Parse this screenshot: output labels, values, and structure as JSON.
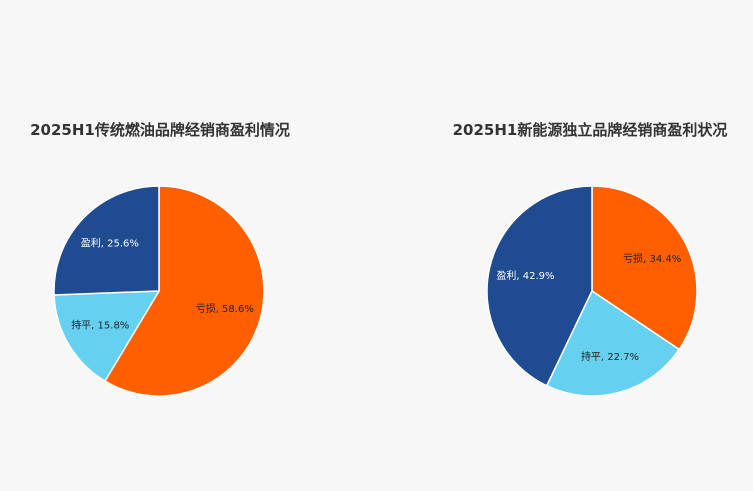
{
  "chart_data": [
    {
      "type": "pie",
      "title": "2025H1传统燃油品牌经销商盈利情况",
      "values": [
        58.6,
        15.8,
        25.6
      ],
      "value_labels": [
        "亏损, 58.6%",
        "持平, 15.8%",
        "盈利, 25.6%"
      ],
      "colors": [
        "#ff5f00",
        "#66d0f0",
        "#1f4b91"
      ]
    },
    {
      "type": "pie",
      "title": "2025H1新能源独立品牌经销商盈利状况",
      "values": [
        34.4,
        22.7,
        42.9
      ],
      "value_labels": [
        "亏损, 34.4%",
        "持平, 22.7%",
        "盈利, 42.9%"
      ],
      "colors": [
        "#ff5f00",
        "#66d0f0",
        "#1f4b91"
      ]
    }
  ]
}
